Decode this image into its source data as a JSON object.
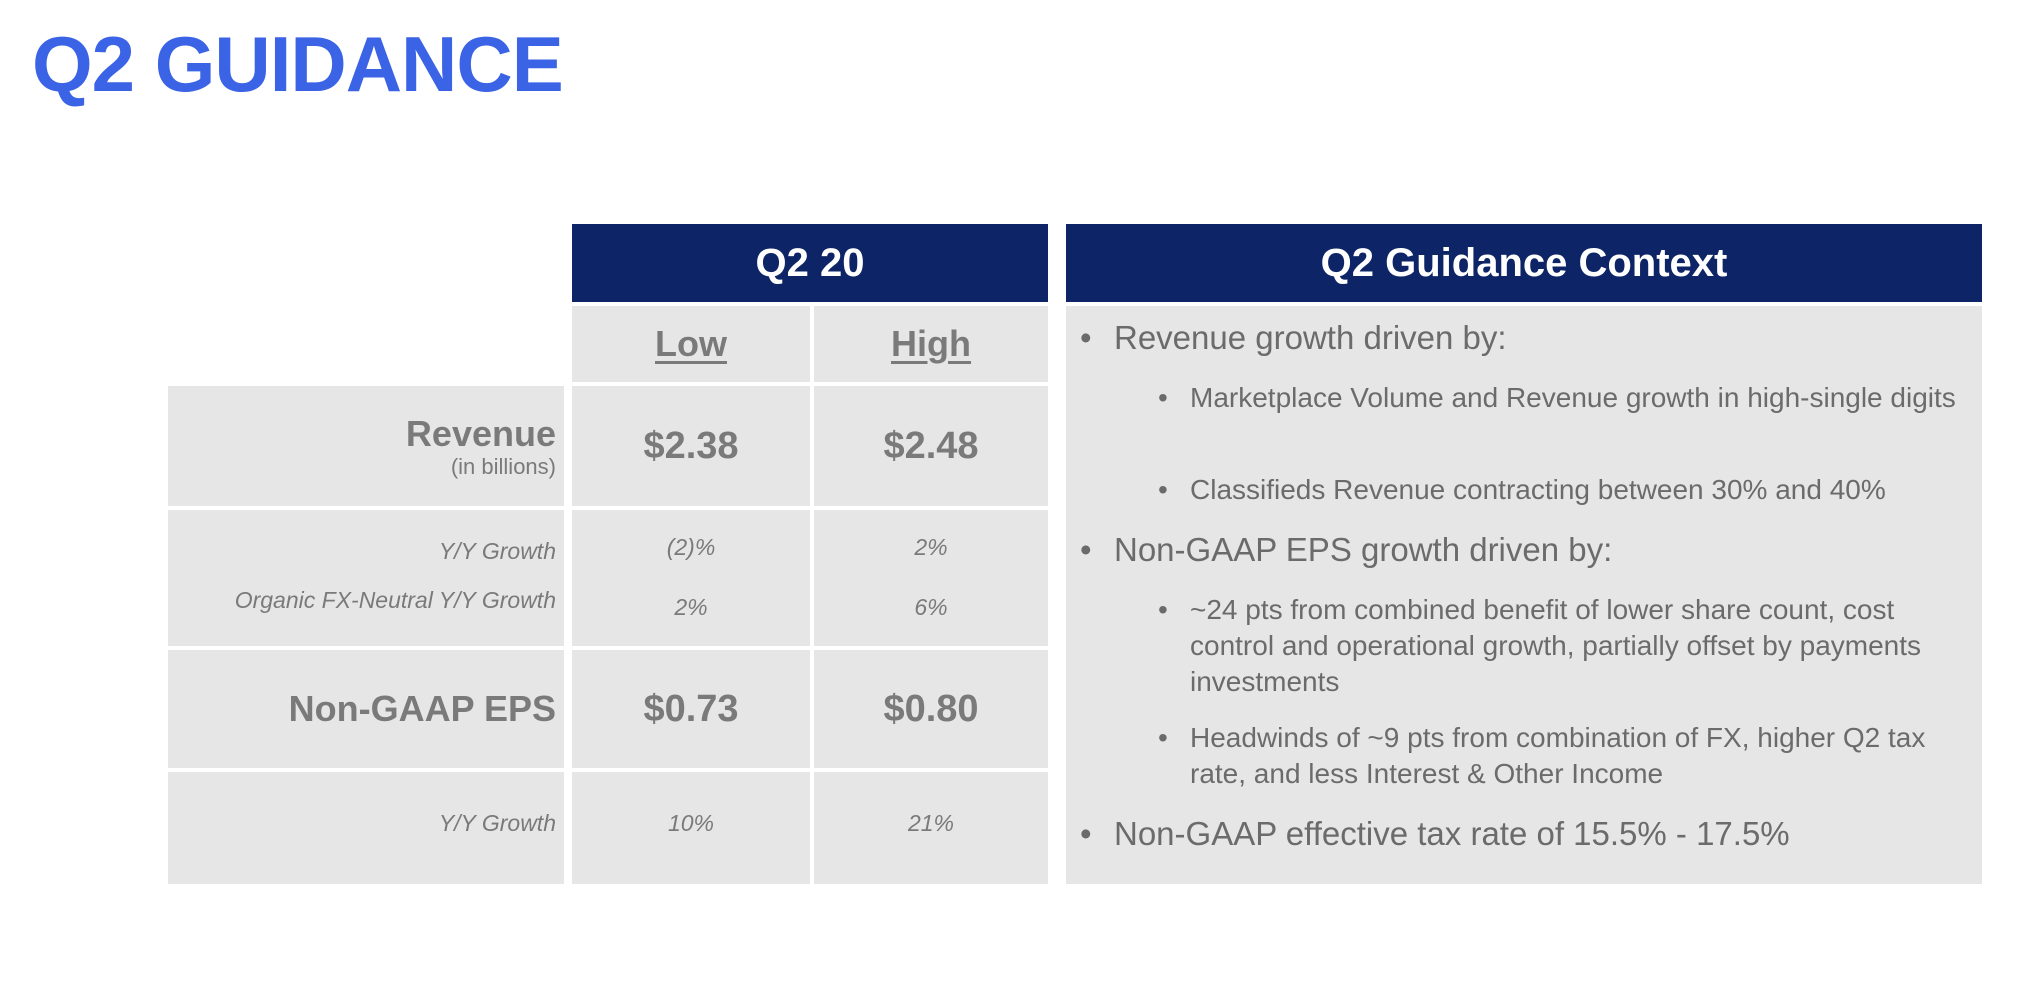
{
  "title": "Q2 GUIDANCE",
  "table": {
    "period_header": "Q2 20",
    "col_low": "Low",
    "col_high": "High",
    "revenue_label": "Revenue",
    "revenue_sublabel": "(in billions)",
    "revenue_low": "$2.38",
    "revenue_high": "$2.48",
    "yy_growth_label": "Y/Y Growth",
    "yy_growth_low": "(2)%",
    "yy_growth_high": "2%",
    "organic_label": "Organic FX-Neutral Y/Y Growth",
    "organic_low": "2%",
    "organic_high": "6%",
    "eps_label": "Non-GAAP EPS",
    "eps_low": "$0.73",
    "eps_high": "$0.80",
    "eps_yy_label": "Y/Y Growth",
    "eps_yy_low": "10%",
    "eps_yy_high": "21%"
  },
  "context": {
    "header": "Q2 Guidance Context",
    "bullet_revenue": "Revenue growth driven by:",
    "sub_marketplace": "Marketplace Volume and Revenue growth in high-single digits",
    "sub_classifieds": "Classifieds Revenue contracting between 30% and 40%",
    "bullet_eps": "Non-GAAP EPS growth driven by:",
    "sub_benefit": "~24 pts from combined benefit of lower share count, cost control and operational growth, partially offset by payments investments",
    "sub_headwinds": "Headwinds of ~9 pts from combination of FX, higher Q2 tax rate, and less Interest & Other Income",
    "bullet_tax": "Non-GAAP effective tax rate of 15.5% - 17.5%"
  }
}
